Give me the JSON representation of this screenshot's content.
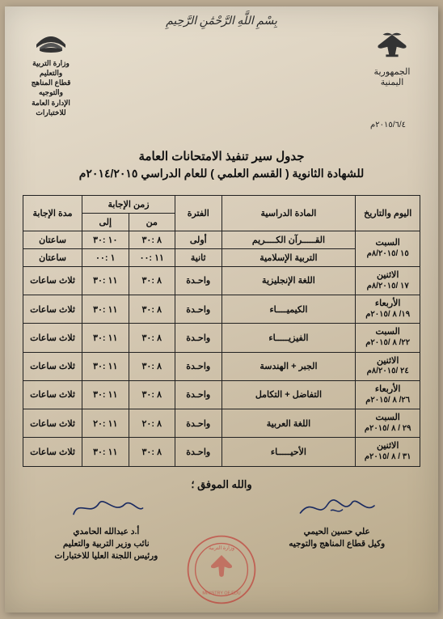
{
  "bismillah": "بِسْمِ اللَّهِ الرَّحْمَٰنِ الرَّحِيمِ",
  "republic": "الجمهورية اليمنية",
  "ministry": {
    "line1": "وزارة التربية والتعليم",
    "line2": "قطاع المناهج والتوجيه",
    "line3": "الإدارة العامة للاختبارات"
  },
  "doc_date": "٢٠١٥/٦/٤م",
  "title": {
    "line1": "جدول سير تنفيذ الامتحانات العامة",
    "line2": "للشهادة الثانوية ( القسم العلمي ) للعام الدراسي ٢٠١٤/٢٠١٥م"
  },
  "columns": {
    "day_date": "اليوم والتاريخ",
    "subject": "المادة الدراسية",
    "period": "الفترة",
    "answer_time": "زمن الإجابة",
    "from": "من",
    "to": "إلى",
    "duration": "مدة الإجابة"
  },
  "rows": [
    {
      "day": "السبت",
      "date": "١٥ /٨/٢٠١٥م",
      "subject": "القـــــرآن الكــــريم",
      "period": "أولى",
      "from": "٨ :٣٠",
      "to": "١٠ :٣٠",
      "duration": "ساعتان",
      "rowspan_date": 2
    },
    {
      "day": "",
      "date": "",
      "subject": "التربية الإسلامية",
      "period": "ثانية",
      "from": "١١ :٠٠",
      "to": "١ :٠٠",
      "duration": "ساعتان",
      "skip_date": true
    },
    {
      "day": "الاثنين",
      "date": "١٧ /٨/٢٠١٥م",
      "subject": "اللغة الإنجليزية",
      "period": "واحـدة",
      "from": "٨ :٣٠",
      "to": "١١ :٣٠",
      "duration": "ثلاث ساعات"
    },
    {
      "day": "الأربعاء",
      "date": "١٩/ ٨ /٢٠١٥م",
      "subject": "الكيميــــاء",
      "period": "واحـدة",
      "from": "٨ :٣٠",
      "to": "١١ :٣٠",
      "duration": "ثلاث ساعات"
    },
    {
      "day": "السبت",
      "date": "٢٢/ ٨ /٢٠١٥م",
      "subject": "الفيزيـــــاء",
      "period": "واحـدة",
      "from": "٨ :٣٠",
      "to": "١١ :٣٠",
      "duration": "ثلاث ساعات"
    },
    {
      "day": "الاثنين",
      "date": "٢٤ /٨/٢٠١٥م",
      "subject": "الجبر + الهندسة",
      "period": "واحـدة",
      "from": "٨ :٣٠",
      "to": "١١ :٣٠",
      "duration": "ثلاث ساعات"
    },
    {
      "day": "الأربعاء",
      "date": "٢٦/ ٨ /٢٠١٥م",
      "subject": "التفاضل + التكامل",
      "period": "واحـدة",
      "from": "٨ :٣٠",
      "to": "١١ :٣٠",
      "duration": "ثلاث ساعات"
    },
    {
      "day": "السبت",
      "date": "٢٩ / ٨ /٢٠١٥م",
      "subject": "اللغة العربية",
      "period": "واحـدة",
      "from": "٨ :٢٠",
      "to": "١١ :٢٠",
      "duration": "ثلاث ساعات"
    },
    {
      "day": "الاثنين",
      "date": "٣١ / ٨ /٢٠١٥م",
      "subject": "الأحيـــــاء",
      "period": "واحـدة",
      "from": "٨ :٣٠",
      "to": "١١ :٣٠",
      "duration": "ثلاث ساعات"
    }
  ],
  "closing": "والله الموفق ؛",
  "sign_right": {
    "name": "علي حسين الحيمي",
    "title": "وكيل قطاع المناهج والتوجيه"
  },
  "sign_left": {
    "name": "أ.د عبدالله الحامدي",
    "title1": "نائب وزير التربية والتعليم",
    "title2": "ورئيس اللجنة العليا للاختبارات"
  },
  "colors": {
    "ink": "#111111",
    "stamp": "#c02020",
    "sig": "#1a2a60",
    "paper_light": "#e8e0d0",
    "paper_dark": "#b8a888"
  }
}
